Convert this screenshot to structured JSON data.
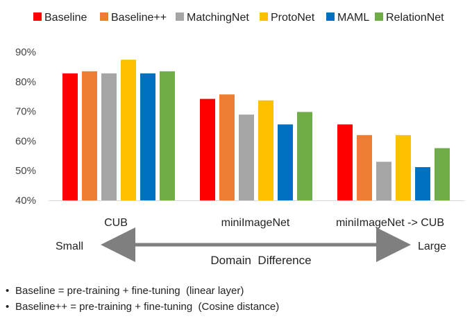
{
  "chart_data": {
    "type": "bar",
    "categories": [
      "CUB",
      "miniImageNet",
      "miniImageNet -> CUB"
    ],
    "series": [
      {
        "name": "Baseline",
        "color": "#ff0000",
        "values": [
          82.8,
          74.2,
          65.6
        ]
      },
      {
        "name": "Baseline++",
        "color": "#ed7d31",
        "values": [
          83.5,
          75.7,
          62.0
        ]
      },
      {
        "name": "MatchingNet",
        "color": "#a5a5a5",
        "values": [
          82.8,
          68.9,
          53.0
        ]
      },
      {
        "name": "ProtoNet",
        "color": "#ffc000",
        "values": [
          87.4,
          73.7,
          62.0
        ]
      },
      {
        "name": "MAML",
        "color": "#0070c0",
        "values": [
          82.8,
          65.6,
          51.2
        ]
      },
      {
        "name": "RelationNet",
        "color": "#70ad47",
        "values": [
          83.5,
          69.8,
          57.6
        ]
      }
    ],
    "ylim": [
      40,
      90
    ],
    "yticks": [
      "40%",
      "50%",
      "60%",
      "70%",
      "80%",
      "90%"
    ],
    "grid": false,
    "legend": "top"
  },
  "axis": {
    "left_label": "Small",
    "right_label": "Large",
    "title": "Domain  Difference"
  },
  "notes": [
    "Baseline = pre-training + fine-tuning  (linear layer)",
    "Baseline++ = pre-training + fine-tuning  (Cosine distance)"
  ]
}
